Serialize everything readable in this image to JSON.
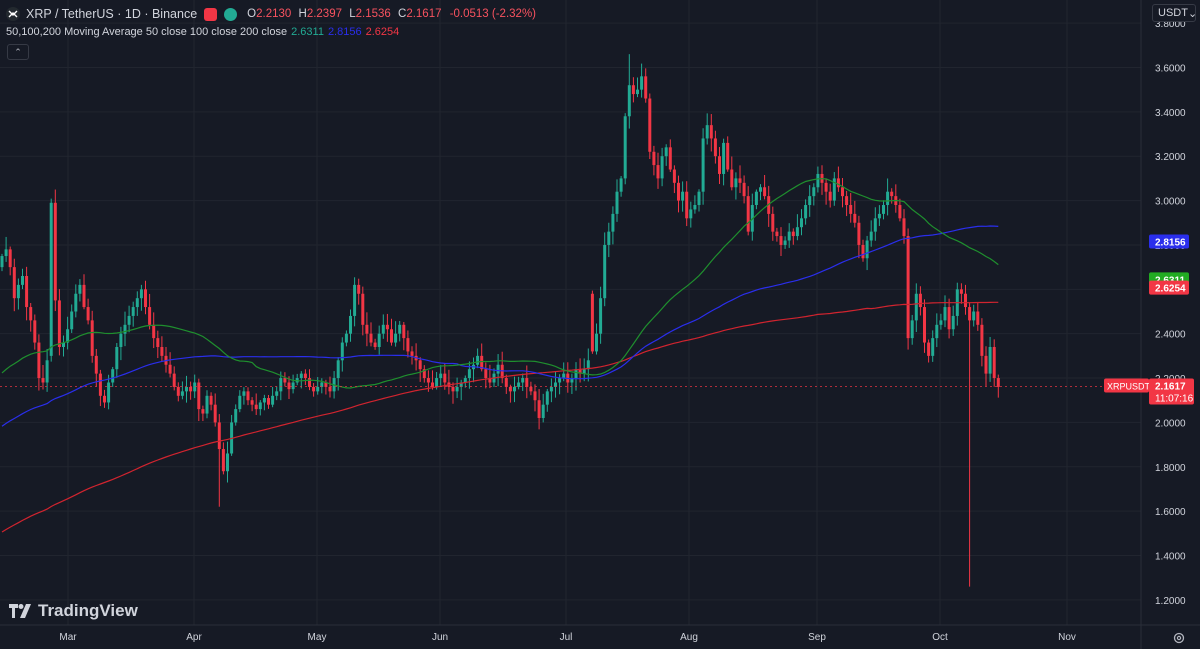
{
  "header": {
    "symbol": "XRP / TetherUS · 1D · Binance",
    "ohlc": {
      "o_label": "O",
      "o": "2.2130",
      "h_label": "H",
      "h": "2.2397",
      "l_label": "L",
      "l": "2.1536",
      "c_label": "C",
      "c": "2.1617",
      "change": "-0.0513 (-2.32%)"
    }
  },
  "indicator": {
    "label": "50,100,200 Moving Average 50 close 100 close 200 close",
    "ma50": "2.6311",
    "ma100": "2.8156",
    "ma200": "2.6254"
  },
  "currency_button": "USDT",
  "branding": "TradingView",
  "colors": {
    "background": "#161a25",
    "up": "#22ab94",
    "down": "#f23645",
    "ma50": "#1f8f2e",
    "ma100": "#2a2eec",
    "ma200": "#d1242f",
    "axis_text": "#d1d4dc"
  },
  "chart_data": {
    "type": "candlestick",
    "title": "XRP / TetherUS · 1D · Binance",
    "x_ticks": [
      "Mar",
      "Apr",
      "May",
      "Jun",
      "Jul",
      "Aug",
      "Sep",
      "Oct",
      "Nov"
    ],
    "y_ticks": [
      "3.8000",
      "3.6000",
      "3.4000",
      "3.2000",
      "3.0000",
      "2.8000",
      "2.6000",
      "2.4000",
      "2.2000",
      "2.0000",
      "1.8000",
      "1.6000",
      "1.4000",
      "1.2000"
    ],
    "ylim": [
      1.15,
      3.85
    ],
    "x_start_date": "2025-02-01",
    "last_price": {
      "label": "XRPUSDT",
      "value": "2.1617",
      "countdown": "11:07:16"
    },
    "price_labels": [
      {
        "name": "ma100",
        "value": "2.8156",
        "color": "#2a2eec"
      },
      {
        "name": "ma50",
        "value": "2.6311",
        "color": "#22ab22"
      },
      {
        "name": "ma200",
        "value": "2.6254",
        "color": "#f23645"
      }
    ],
    "candles_close": [
      2.75,
      2.78,
      2.7,
      2.56,
      2.62,
      2.66,
      2.52,
      2.46,
      2.36,
      2.2,
      2.18,
      2.28,
      2.99,
      2.55,
      2.34,
      2.36,
      2.42,
      2.5,
      2.58,
      2.62,
      2.52,
      2.46,
      2.3,
      2.22,
      2.12,
      2.09,
      2.18,
      2.24,
      2.34,
      2.4,
      2.44,
      2.48,
      2.52,
      2.56,
      2.6,
      2.52,
      2.44,
      2.38,
      2.34,
      2.3,
      2.26,
      2.22,
      2.16,
      2.12,
      2.14,
      2.16,
      2.14,
      2.18,
      2.06,
      2.04,
      2.12,
      2.08,
      2.0,
      1.88,
      1.78,
      1.86,
      2.0,
      2.06,
      2.12,
      2.14,
      2.1,
      2.08,
      2.06,
      2.09,
      2.11,
      2.08,
      2.12,
      2.14,
      2.2,
      2.18,
      2.15,
      2.18,
      2.2,
      2.22,
      2.2,
      2.16,
      2.14,
      2.16,
      2.18,
      2.16,
      2.14,
      2.2,
      2.28,
      2.36,
      2.4,
      2.48,
      2.62,
      2.58,
      2.44,
      2.4,
      2.36,
      2.34,
      2.4,
      2.44,
      2.42,
      2.36,
      2.4,
      2.44,
      2.38,
      2.32,
      2.3,
      2.28,
      2.24,
      2.2,
      2.18,
      2.16,
      2.2,
      2.22,
      2.18,
      2.16,
      2.14,
      2.16,
      2.18,
      2.2,
      2.24,
      2.26,
      2.3,
      2.24,
      2.2,
      2.18,
      2.22,
      2.26,
      2.2,
      2.16,
      2.14,
      2.16,
      2.18,
      2.2,
      2.16,
      2.14,
      2.1,
      2.02,
      2.08,
      2.14,
      2.16,
      2.18,
      2.2,
      2.22,
      2.18,
      2.2,
      2.24,
      2.22,
      2.24,
      2.28,
      2.32,
      2.4,
      2.56,
      2.8,
      2.86,
      2.94,
      3.04,
      3.1,
      3.38,
      3.52,
      3.48,
      3.5,
      3.56,
      3.46,
      3.22,
      3.16,
      3.1,
      3.2,
      3.24,
      3.14,
      3.08,
      3.0,
      3.04,
      2.92,
      2.96,
      2.98,
      3.04,
      3.28,
      3.34,
      3.28,
      3.2,
      3.12,
      3.26,
      3.14,
      3.06,
      3.1,
      3.08,
      3.02,
      2.86,
      2.98,
      3.04,
      3.06,
      3.02,
      2.94,
      2.86,
      2.84,
      2.8,
      2.82,
      2.86,
      2.84,
      2.88,
      2.92,
      2.98,
      3.02,
      3.06,
      3.12,
      3.08,
      3.04,
      3.0,
      3.1,
      3.06,
      3.02,
      2.98,
      2.94,
      2.9,
      2.8,
      2.74,
      2.82,
      2.86,
      2.92,
      2.94,
      2.98,
      3.04,
      3.02,
      2.98,
      2.92,
      2.84,
      2.38,
      2.46,
      2.58,
      2.52,
      2.36,
      2.3,
      2.38,
      2.44,
      2.46,
      2.52,
      2.42,
      2.48,
      2.6,
      2.58,
      2.52,
      2.46,
      2.5,
      2.44,
      2.3,
      2.22,
      2.34,
      2.2,
      2.16
    ],
    "series": [
      {
        "name": "MA 50",
        "color": "#1f8f2e"
      },
      {
        "name": "MA 100",
        "color": "#2a2eec"
      },
      {
        "name": "MA 200",
        "color": "#d1242f"
      }
    ]
  }
}
